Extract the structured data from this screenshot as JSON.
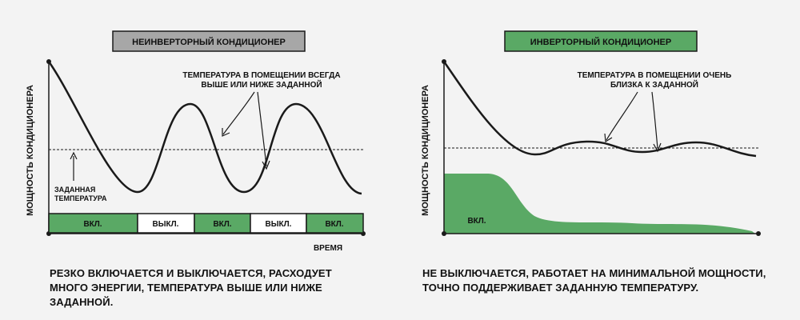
{
  "colors": {
    "green": "#5aa965",
    "gray_title": "#a7a7a7",
    "ink": "#1a1a1a",
    "background": "#f3f3f3"
  },
  "left_panel": {
    "title": "НЕИНВЕРТОРНЫЙ КОНДИЦИОНЕР",
    "y_axis_label": "МОЩНОСТЬ КОНДИЦИОНЕРА",
    "x_axis_label": "ВРЕМЯ",
    "annotation_line1": "ТЕМПЕРАТУРА В ПОМЕЩЕНИИ ВСЕГДА",
    "annotation_line2": "ВЫШЕ ИЛИ НИЖЕ ЗАДАННОЙ",
    "setpoint_line1": "ЗАДАННАЯ",
    "setpoint_line2": "ТЕМПЕРАТУРА",
    "state_bar": [
      {
        "label": "ВКЛ.",
        "state": "on"
      },
      {
        "label": "ВЫКЛ.",
        "state": "off"
      },
      {
        "label": "ВКЛ.",
        "state": "on"
      },
      {
        "label": "ВЫКЛ.",
        "state": "off"
      },
      {
        "label": "ВКЛ.",
        "state": "on"
      }
    ],
    "caption": "РЕЗКО ВКЛЮЧАЕТСЯ И ВЫКЛЮЧАЕТСЯ, РАСХОДУЕТ МНОГО ЭНЕРГИИ, ТЕМПЕРАТУРА ВЫШЕ ИЛИ НИЖЕ ЗАДАННОЙ."
  },
  "right_panel": {
    "title": "ИНВЕРТОРНЫЙ КОНДИЦИОНЕР",
    "y_axis_label": "МОЩНОСТЬ КОНДИЦИОНЕРА",
    "annotation_line1": "ТЕМПЕРАТУРА В ПОМЕЩЕНИИ ОЧЕНЬ",
    "annotation_line2": "БЛИЗКА К ЗАДАННОЙ",
    "area_label": "ВКЛ.",
    "caption": "НЕ ВЫКЛЮЧАЕТСЯ, РАБОТАЕТ НА МИНИМАЛЬНОЙ МОЩНОСТИ, ТОЧНО ПОДДЕРЖИВАЕТ ЗАДАННУЮ ТЕМПЕРАТУРУ."
  }
}
